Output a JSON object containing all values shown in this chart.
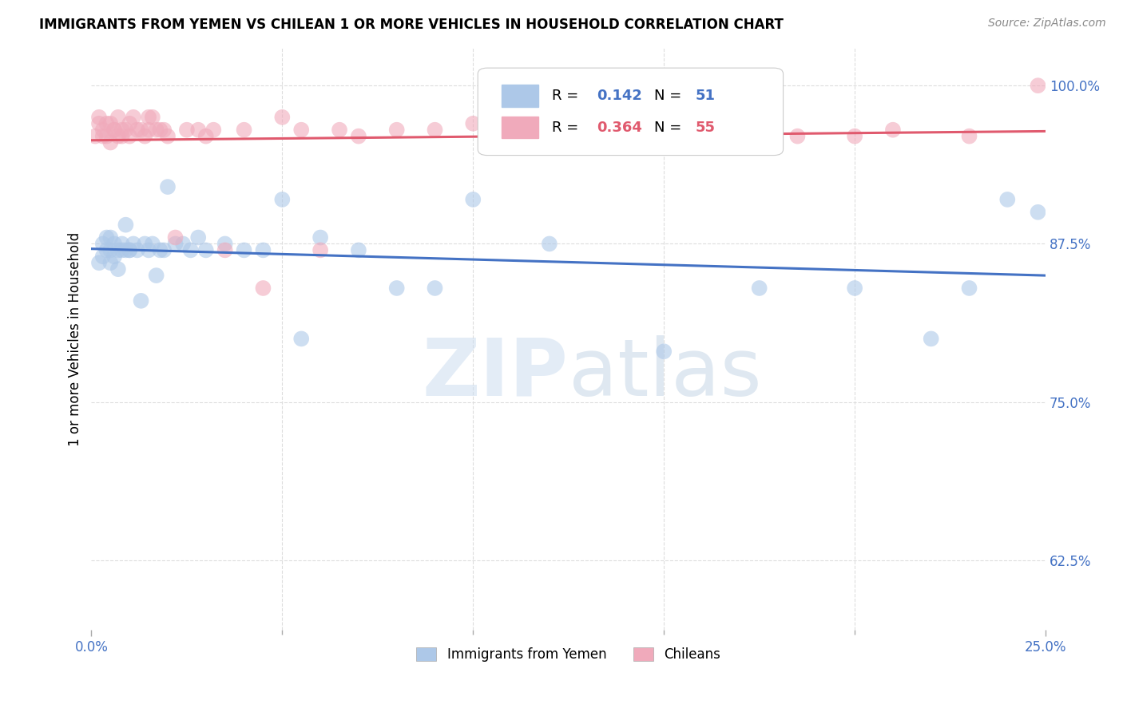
{
  "title": "IMMIGRANTS FROM YEMEN VS CHILEAN 1 OR MORE VEHICLES IN HOUSEHOLD CORRELATION CHART",
  "source": "Source: ZipAtlas.com",
  "ylabel": "1 or more Vehicles in Household",
  "xmin": 0.0,
  "xmax": 0.25,
  "ymin": 0.57,
  "ymax": 1.03,
  "yticks": [
    0.625,
    0.75,
    0.875,
    1.0
  ],
  "ytick_labels": [
    "62.5%",
    "75.0%",
    "87.5%",
    "100.0%"
  ],
  "xtick_left_label": "0.0%",
  "xtick_right_label": "25.0%",
  "r_yemen": "0.142",
  "n_yemen": "51",
  "r_chilean": "0.364",
  "n_chilean": "55",
  "blue_line_color": "#4472c4",
  "pink_line_color": "#e05a6e",
  "scatter_blue_color": "#adc8e8",
  "scatter_pink_color": "#f0aabb",
  "legend_label_yemen": "Immigrants from Yemen",
  "legend_label_chilean": "Chileans",
  "watermark": "ZIPatlas",
  "yemen_x": [
    0.002,
    0.003,
    0.003,
    0.004,
    0.004,
    0.005,
    0.005,
    0.005,
    0.006,
    0.006,
    0.007,
    0.007,
    0.008,
    0.008,
    0.009,
    0.009,
    0.01,
    0.01,
    0.011,
    0.012,
    0.013,
    0.014,
    0.015,
    0.016,
    0.017,
    0.018,
    0.019,
    0.02,
    0.022,
    0.024,
    0.026,
    0.028,
    0.03,
    0.035,
    0.04,
    0.045,
    0.05,
    0.055,
    0.06,
    0.07,
    0.08,
    0.09,
    0.1,
    0.12,
    0.15,
    0.175,
    0.2,
    0.22,
    0.23,
    0.24,
    0.248
  ],
  "yemen_y": [
    0.86,
    0.875,
    0.865,
    0.87,
    0.88,
    0.86,
    0.87,
    0.88,
    0.865,
    0.875,
    0.855,
    0.87,
    0.87,
    0.875,
    0.87,
    0.89,
    0.87,
    0.87,
    0.875,
    0.87,
    0.83,
    0.875,
    0.87,
    0.875,
    0.85,
    0.87,
    0.87,
    0.92,
    0.875,
    0.875,
    0.87,
    0.88,
    0.87,
    0.875,
    0.87,
    0.87,
    0.91,
    0.8,
    0.88,
    0.87,
    0.84,
    0.84,
    0.91,
    0.875,
    0.79,
    0.84,
    0.84,
    0.8,
    0.84,
    0.91,
    0.9
  ],
  "chilean_x": [
    0.001,
    0.002,
    0.002,
    0.003,
    0.003,
    0.004,
    0.004,
    0.005,
    0.005,
    0.006,
    0.006,
    0.007,
    0.007,
    0.008,
    0.008,
    0.009,
    0.01,
    0.01,
    0.011,
    0.012,
    0.013,
    0.014,
    0.015,
    0.015,
    0.016,
    0.017,
    0.018,
    0.019,
    0.02,
    0.022,
    0.025,
    0.028,
    0.03,
    0.032,
    0.035,
    0.04,
    0.045,
    0.05,
    0.055,
    0.06,
    0.065,
    0.07,
    0.08,
    0.09,
    0.1,
    0.11,
    0.12,
    0.14,
    0.155,
    0.17,
    0.185,
    0.2,
    0.21,
    0.23,
    0.248
  ],
  "chilean_y": [
    0.96,
    0.97,
    0.975,
    0.96,
    0.965,
    0.96,
    0.97,
    0.955,
    0.97,
    0.965,
    0.965,
    0.975,
    0.96,
    0.96,
    0.965,
    0.965,
    0.96,
    0.97,
    0.975,
    0.965,
    0.965,
    0.96,
    0.975,
    0.965,
    0.975,
    0.965,
    0.965,
    0.965,
    0.96,
    0.88,
    0.965,
    0.965,
    0.96,
    0.965,
    0.87,
    0.965,
    0.84,
    0.975,
    0.965,
    0.87,
    0.965,
    0.96,
    0.965,
    0.965,
    0.97,
    0.965,
    0.965,
    0.96,
    0.96,
    0.96,
    0.96,
    0.96,
    0.965,
    0.96,
    1.0
  ],
  "grid_color": "#dddddd",
  "title_fontsize": 12,
  "source_fontsize": 10,
  "tick_fontsize": 12,
  "ylabel_fontsize": 12
}
